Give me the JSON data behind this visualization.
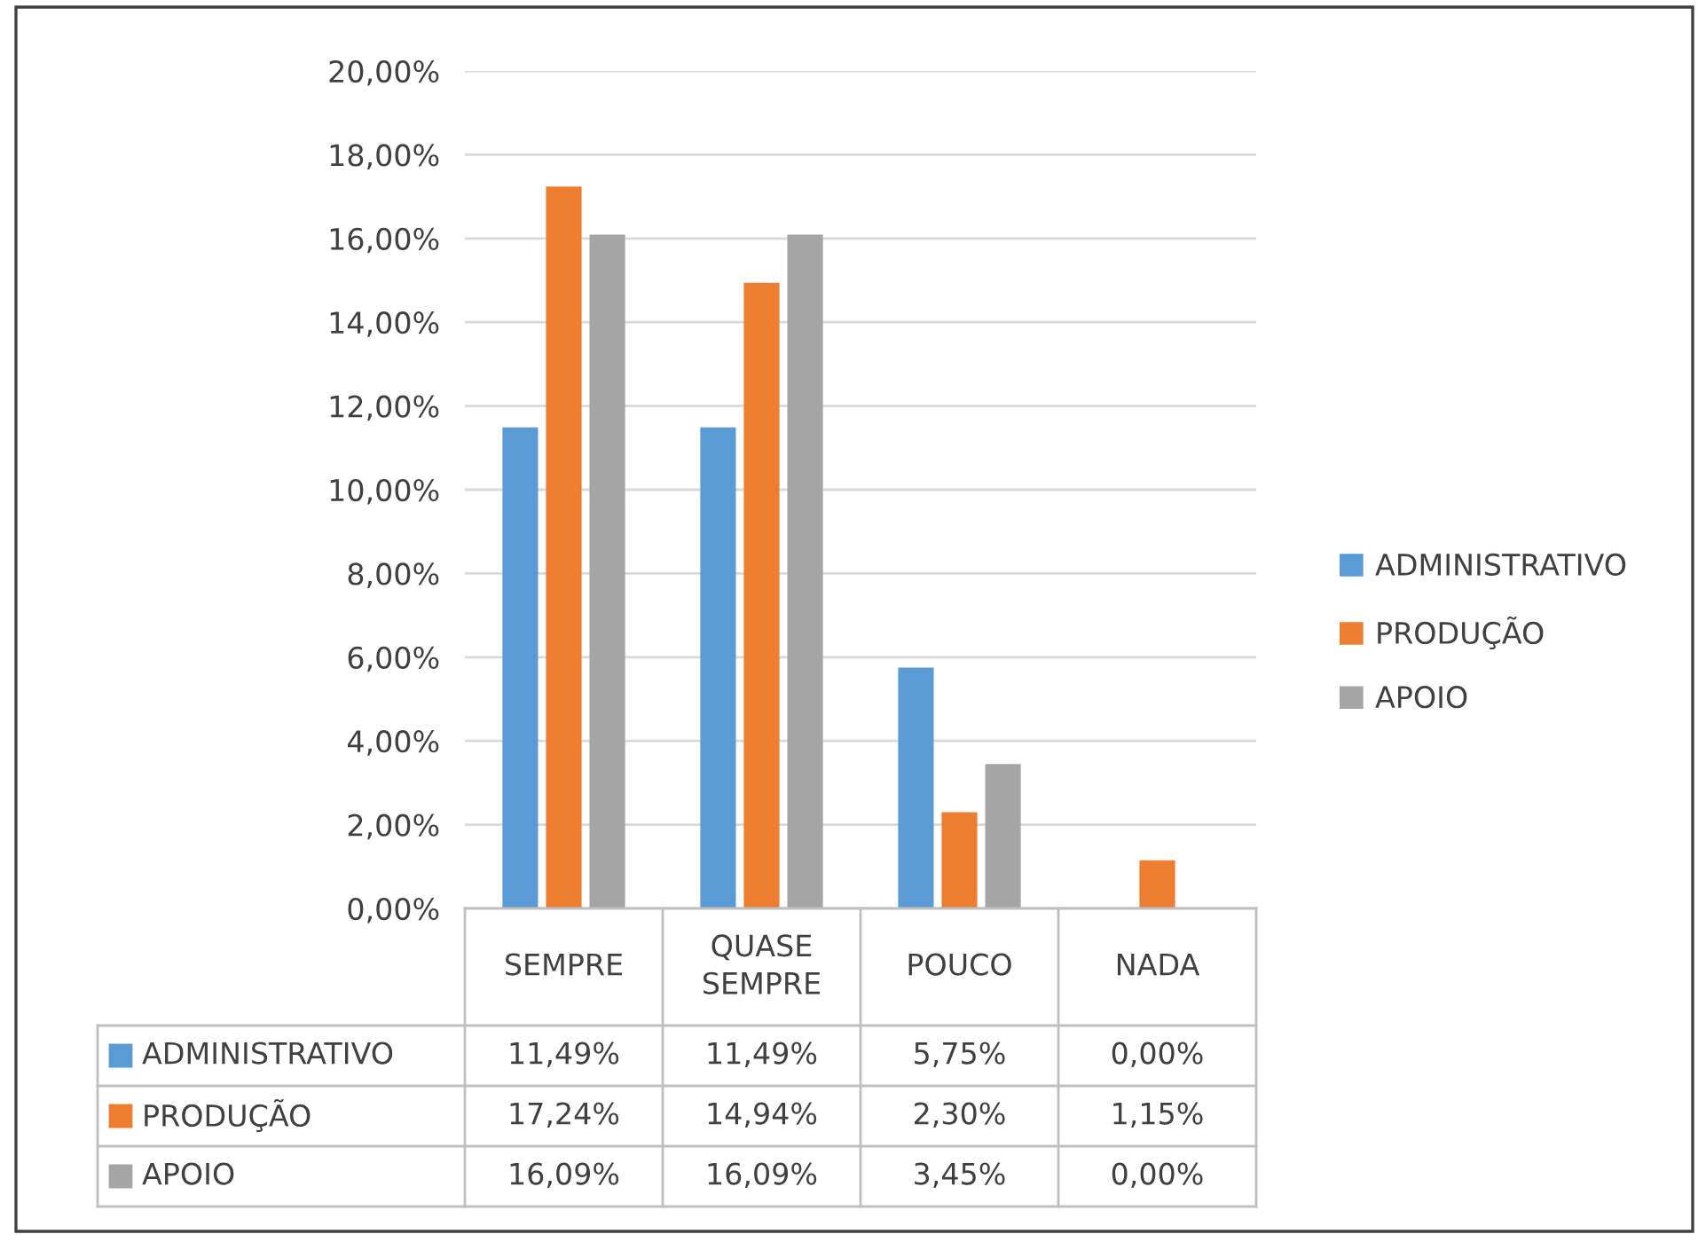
{
  "chart_data": {
    "type": "bar",
    "categories": [
      "SEMPRE",
      "QUASE SEMPRE",
      "POUCO",
      "NADA"
    ],
    "series": [
      {
        "name": "ADMINISTRATIVO",
        "color": "#5b9bd5",
        "values": [
          11.49,
          11.49,
          5.75,
          0.0
        ],
        "value_labels": [
          "11,49%",
          "11,49%",
          "5,75%",
          "0,00%"
        ]
      },
      {
        "name": "PRODUÇÃO",
        "color": "#ed7d31",
        "values": [
          17.24,
          14.94,
          2.3,
          1.15
        ],
        "value_labels": [
          "17,24%",
          "14,94%",
          "2,30%",
          "1,15%"
        ]
      },
      {
        "name": "APOIO",
        "color": "#a5a5a5",
        "values": [
          16.09,
          16.09,
          3.45,
          0.0
        ],
        "value_labels": [
          "16,09%",
          "16,09%",
          "3,45%",
          "0,00%"
        ]
      }
    ],
    "ylim": [
      0,
      20
    ],
    "yticks": [
      {
        "value": 0,
        "label": "0,00%"
      },
      {
        "value": 2,
        "label": "2,00%"
      },
      {
        "value": 4,
        "label": "4,00%"
      },
      {
        "value": 6,
        "label": "6,00%"
      },
      {
        "value": 8,
        "label": "8,00%"
      },
      {
        "value": 10,
        "label": "10,00%"
      },
      {
        "value": 12,
        "label": "12,00%"
      },
      {
        "value": 14,
        "label": "14,00%"
      },
      {
        "value": 16,
        "label": "16,00%"
      },
      {
        "value": 18,
        "label": "18,00%"
      },
      {
        "value": 20,
        "label": "20,00%"
      }
    ],
    "grid": "y",
    "legend": "right"
  }
}
